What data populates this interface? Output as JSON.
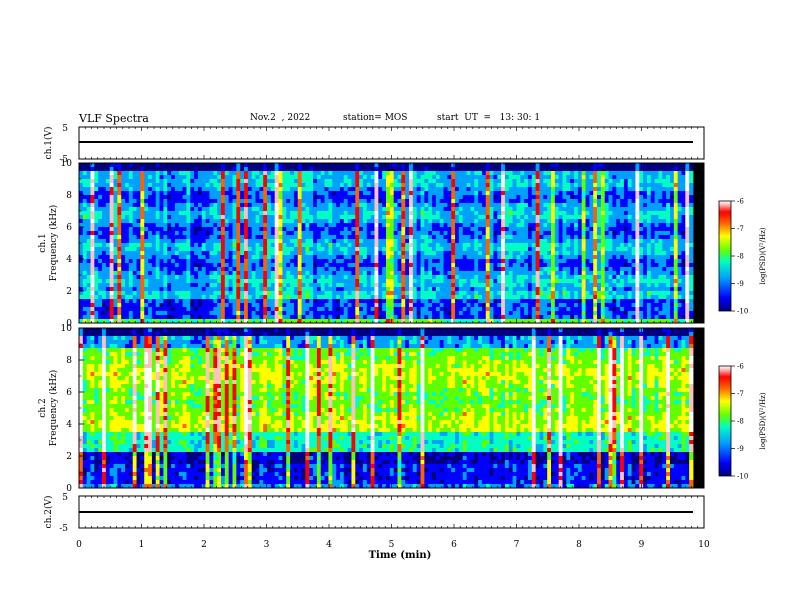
{
  "header": {
    "title": "VLF Spectra",
    "date": "Nov.2  , 2022",
    "station": "station= MOS",
    "start": "start  UT  =   13: 30: 1"
  },
  "chart_data": [
    {
      "type": "line",
      "name": "ch1-waveform",
      "ylabel": "ch.1(V)",
      "ylim": [
        -5,
        5
      ],
      "yticks": [
        "5",
        "-5"
      ],
      "x": [
        0,
        10
      ],
      "y": [
        0,
        0
      ]
    },
    {
      "type": "heatmap",
      "name": "ch1-spectrogram",
      "ylabel": "ch.1\nFrequency (kHz)",
      "ylim": [
        0,
        10
      ],
      "yticks": [
        "0",
        "2",
        "4",
        "6",
        "8",
        "10"
      ],
      "colorbar": {
        "label": "log(PSD)(V²/Hz)",
        "range": [
          -10,
          -6
        ],
        "ticks": [
          "-6",
          "-7",
          "-8",
          "-9",
          "-10"
        ]
      }
    },
    {
      "type": "heatmap",
      "name": "ch2-spectrogram",
      "ylabel": "ch.2\nFrequency (kHz)",
      "ylim": [
        0,
        10
      ],
      "yticks": [
        "0",
        "2",
        "4",
        "6",
        "8",
        "10"
      ],
      "colorbar": {
        "label": "log(PSD)(V²/Hz)",
        "range": [
          -10,
          -6
        ],
        "ticks": [
          "-6",
          "-7",
          "-8",
          "-9",
          "-10"
        ]
      }
    },
    {
      "type": "line",
      "name": "ch2-waveform",
      "ylabel": "ch.2(V)",
      "ylim": [
        -5,
        5
      ],
      "yticks": [
        "5",
        "-5"
      ],
      "x": [
        0,
        10
      ],
      "y": [
        0,
        0
      ]
    }
  ],
  "xaxis": {
    "label": "Time  (min)",
    "xlim": [
      0,
      10
    ],
    "ticks": [
      "0",
      "1",
      "2",
      "3",
      "4",
      "5",
      "6",
      "7",
      "8",
      "9",
      "10"
    ]
  },
  "colors": {
    "colormap": [
      "#000080",
      "#0000ff",
      "#00a0ff",
      "#00ffc0",
      "#60ff00",
      "#ffff00",
      "#ff6000",
      "#ff0000",
      "#ffc0c0",
      "#ffffff"
    ]
  }
}
